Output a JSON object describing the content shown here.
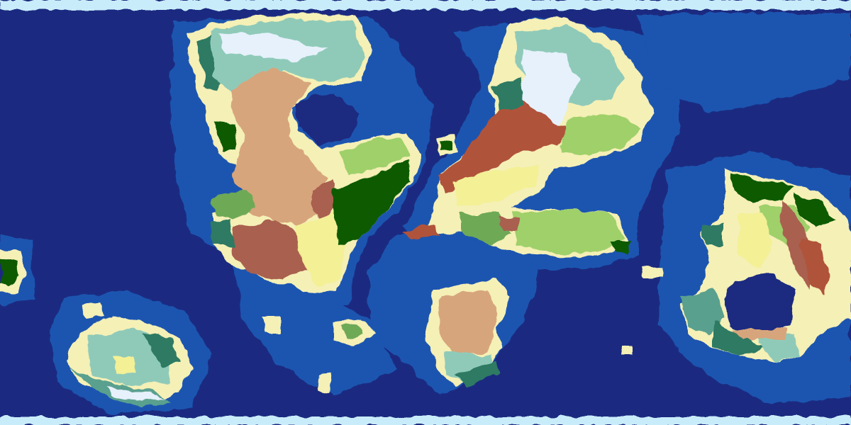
{
  "map": {
    "projection": "equirectangular",
    "labels": [],
    "palette": {
      "deep_ocean": "#1b2a80",
      "shallow_ocean": "#1a54b0",
      "polar_ice": "#c9ecfa",
      "ice": "#e6f1fb",
      "beach": "#f5f0b6",
      "grassland": "#9fd06a",
      "light_forest": "#6ea956",
      "forest": "#2e7a33",
      "jungle": "#075a05",
      "tundra": "#8fcab9",
      "taiga": "#5aa08f",
      "dark_taiga": "#2f7a63",
      "desert": "#d7a57b",
      "savanna": "#f3f096",
      "badlands": "#a9604f",
      "mountains": "#b0533a",
      "rock": "#b5b5b5"
    }
  }
}
